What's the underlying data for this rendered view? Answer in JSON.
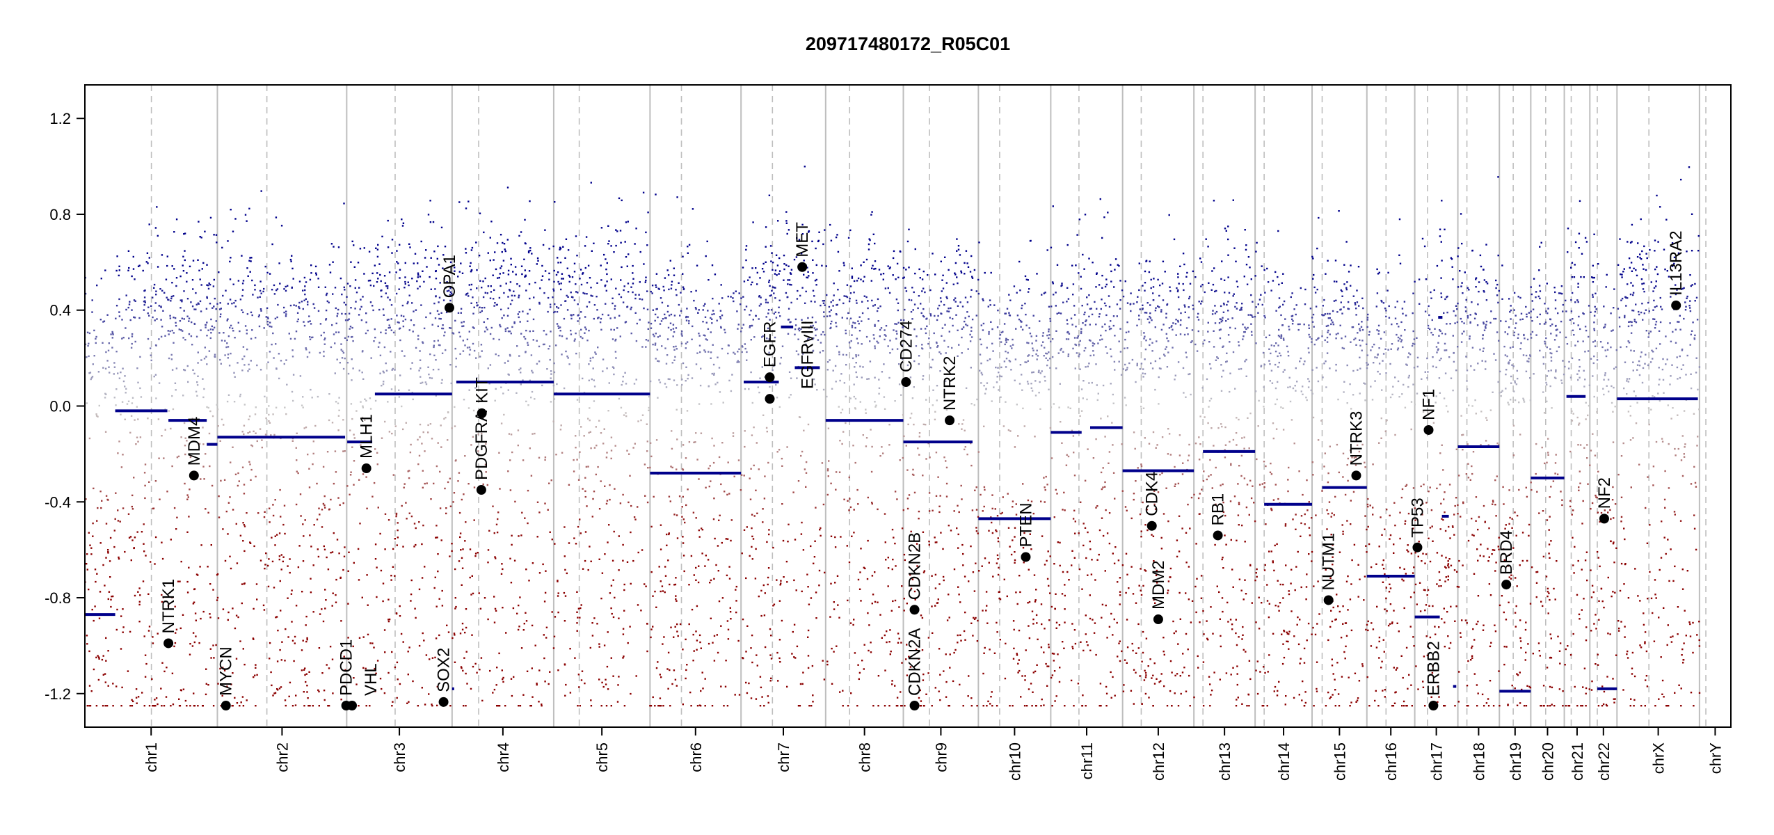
{
  "chart_data": {
    "type": "scatter",
    "title": "209717480172_R05C01",
    "xlabel": "",
    "ylabel": "",
    "ylim": [
      -1.34,
      1.34
    ],
    "y_ticks": [
      1.2,
      0.8,
      0.4,
      0.0,
      -0.4,
      -0.8,
      -1.2
    ],
    "y_tick_labels": [
      "1.2",
      "0.8",
      "0.4",
      "0.0",
      "-0.4",
      "-0.8",
      "-1.2"
    ],
    "grid": false,
    "colors": {
      "gain": "#00008b",
      "loss": "#8b0000",
      "neutral": "#c8c8c8",
      "segment": "#00008b",
      "gene_point": "#000000",
      "chromosome_border": "#bebebe",
      "centromere": "#bebebe"
    },
    "chromosomes": [
      {
        "name": "chr1",
        "length": 249,
        "centromere": 125
      },
      {
        "name": "chr2",
        "length": 243,
        "centromere": 93
      },
      {
        "name": "chr3",
        "length": 198,
        "centromere": 91
      },
      {
        "name": "chr4",
        "length": 191,
        "centromere": 50
      },
      {
        "name": "chr5",
        "length": 181,
        "centromere": 48
      },
      {
        "name": "chr6",
        "length": 171,
        "centromere": 59
      },
      {
        "name": "chr7",
        "length": 159,
        "centromere": 59
      },
      {
        "name": "chr8",
        "length": 146,
        "centromere": 45
      },
      {
        "name": "chr9",
        "length": 141,
        "centromere": 49
      },
      {
        "name": "chr10",
        "length": 136,
        "centromere": 40
      },
      {
        "name": "chr11",
        "length": 135,
        "centromere": 53
      },
      {
        "name": "chr12",
        "length": 134,
        "centromere": 35
      },
      {
        "name": "chr13",
        "length": 115,
        "centromere": 17
      },
      {
        "name": "chr14",
        "length": 107,
        "centromere": 17
      },
      {
        "name": "chr15",
        "length": 103,
        "centromere": 19
      },
      {
        "name": "chr16",
        "length": 90,
        "centromere": 36
      },
      {
        "name": "chr17",
        "length": 81,
        "centromere": 24
      },
      {
        "name": "chr18",
        "length": 78,
        "centromere": 17
      },
      {
        "name": "chr19",
        "length": 59,
        "centromere": 26
      },
      {
        "name": "chr20",
        "length": 63,
        "centromere": 28
      },
      {
        "name": "chr21",
        "length": 48,
        "centromere": 13
      },
      {
        "name": "chr22",
        "length": 51,
        "centromere": 14
      },
      {
        "name": "chrX",
        "length": 155,
        "centromere": 60
      },
      {
        "name": "chrY",
        "length": 59,
        "centromere": 12
      }
    ],
    "segments": [
      {
        "chr": "chr1",
        "start": 0,
        "end": 57,
        "value": -0.87
      },
      {
        "chr": "chr1",
        "start": 57,
        "end": 155,
        "value": -0.02
      },
      {
        "chr": "chr1",
        "start": 157,
        "end": 229,
        "value": -0.06
      },
      {
        "chr": "chr1",
        "start": 229,
        "end": 249,
        "value": -0.16
      },
      {
        "chr": "chr2",
        "start": 0,
        "end": 240,
        "value": -0.13
      },
      {
        "chr": "chr3",
        "start": 1,
        "end": 48,
        "value": -0.15
      },
      {
        "chr": "chr3",
        "start": 53,
        "end": 198,
        "value": 0.05
      },
      {
        "chr": "chr4",
        "start": 0,
        "end": 4,
        "value": -1.18
      },
      {
        "chr": "chr4",
        "start": 8,
        "end": 191,
        "value": 0.1
      },
      {
        "chr": "chr5",
        "start": 0,
        "end": 181,
        "value": 0.05
      },
      {
        "chr": "chr6",
        "start": 0,
        "end": 171,
        "value": -0.28
      },
      {
        "chr": "chr7",
        "start": 5,
        "end": 71,
        "value": 0.1
      },
      {
        "chr": "chr7",
        "start": 75,
        "end": 98,
        "value": 0.33
      },
      {
        "chr": "chr7",
        "start": 101,
        "end": 148,
        "value": 0.16
      },
      {
        "chr": "chr8",
        "start": 0,
        "end": 146,
        "value": -0.06
      },
      {
        "chr": "chr9",
        "start": 0,
        "end": 130,
        "value": -0.15
      },
      {
        "chr": "chr10",
        "start": 0,
        "end": 136,
        "value": -0.47
      },
      {
        "chr": "chr11",
        "start": 0,
        "end": 58,
        "value": -0.11
      },
      {
        "chr": "chr11",
        "start": 74,
        "end": 135,
        "value": -0.09
      },
      {
        "chr": "chr12",
        "start": 0,
        "end": 134,
        "value": -0.27
      },
      {
        "chr": "chr13",
        "start": 17,
        "end": 115,
        "value": -0.19
      },
      {
        "chr": "chr14",
        "start": 17,
        "end": 107,
        "value": -0.41
      },
      {
        "chr": "chr15",
        "start": 19,
        "end": 103,
        "value": -0.34
      },
      {
        "chr": "chr16",
        "start": 0,
        "end": 90,
        "value": -0.71
      },
      {
        "chr": "chr17",
        "start": 0,
        "end": 47,
        "value": -0.88
      },
      {
        "chr": "chr17",
        "start": 44,
        "end": 52,
        "value": 0.37
      },
      {
        "chr": "chr17",
        "start": 51,
        "end": 64,
        "value": -0.46
      },
      {
        "chr": "chr17",
        "start": 72,
        "end": 78,
        "value": -1.17
      },
      {
        "chr": "chr18",
        "start": 0,
        "end": 78,
        "value": -0.17
      },
      {
        "chr": "chr19",
        "start": 0,
        "end": 59,
        "value": -1.19
      },
      {
        "chr": "chr20",
        "start": 0,
        "end": 63,
        "value": -0.3
      },
      {
        "chr": "chr21",
        "start": 4,
        "end": 40,
        "value": 0.04
      },
      {
        "chr": "chr22",
        "start": 14,
        "end": 51,
        "value": -1.18
      },
      {
        "chrX": null,
        "chr": "chrX",
        "start": 0,
        "end": 152,
        "value": 0.03
      }
    ],
    "genes": [
      {
        "name": "NTRK1",
        "chr": "chr1",
        "pos": 157,
        "value": -0.99
      },
      {
        "name": "MDM4",
        "chr": "chr1",
        "pos": 205,
        "value": -0.29
      },
      {
        "name": "MYCN",
        "chr": "chr2",
        "pos": 16,
        "value": -1.25
      },
      {
        "name": "PDCD1",
        "chr": "chr2",
        "pos": 242,
        "value": -1.25
      },
      {
        "name": "VHL",
        "chr": "chr3",
        "pos": 10,
        "value": -1.25
      },
      {
        "name": "MLH1",
        "chr": "chr3",
        "pos": 37,
        "value": -0.26
      },
      {
        "name": "SOX2",
        "chr": "chr3",
        "pos": 182,
        "value": -1.235
      },
      {
        "name": "OPA1",
        "chr": "chr3",
        "pos": 193,
        "value": 0.41
      },
      {
        "name": "KIT",
        "chr": "chr4",
        "pos": 56,
        "value": -0.03
      },
      {
        "name": "PDGFRA",
        "chr": "chr4",
        "pos": 55,
        "value": -0.35
      },
      {
        "name": "EGFR",
        "chr": "chr7",
        "pos": 54,
        "value": 0.12
      },
      {
        "name": "EGFRvIII",
        "chr": "chr7",
        "pos": 54,
        "value": 0.03
      },
      {
        "name": "MET",
        "chr": "chr7",
        "pos": 115,
        "value": 0.58
      },
      {
        "name": "CD274",
        "chr": "chr9",
        "pos": 5,
        "value": 0.1
      },
      {
        "name": "CDKN2A",
        "chr": "chr9",
        "pos": 21,
        "value": -1.25
      },
      {
        "name": "CDKN2B",
        "chr": "chr9",
        "pos": 21,
        "value": -0.85
      },
      {
        "name": "NTRK2",
        "chr": "chr9",
        "pos": 87,
        "value": -0.06
      },
      {
        "name": "PTEN",
        "chr": "chr10",
        "pos": 89,
        "value": -0.63
      },
      {
        "name": "CDK4",
        "chr": "chr12",
        "pos": 55,
        "value": -0.5
      },
      {
        "name": "MDM2",
        "chr": "chr12",
        "pos": 67,
        "value": -0.89
      },
      {
        "name": "RB1",
        "chr": "chr13",
        "pos": 45,
        "value": -0.54
      },
      {
        "name": "NUTM1",
        "chr": "chr15",
        "pos": 31,
        "value": -0.81
      },
      {
        "name": "NTRK3",
        "chr": "chr15",
        "pos": 83,
        "value": -0.29
      },
      {
        "name": "TP53",
        "chr": "chr17",
        "pos": 5,
        "value": -0.59
      },
      {
        "name": "NF1",
        "chr": "chr17",
        "pos": 26,
        "value": -0.1
      },
      {
        "name": "ERBB2",
        "chr": "chr17",
        "pos": 35,
        "value": -1.25
      },
      {
        "name": "BRD4",
        "chr": "chr19",
        "pos": 13,
        "value": -0.745
      },
      {
        "name": "NF2",
        "chr": "chr22",
        "pos": 27,
        "value": -0.47
      },
      {
        "name": "IL13RA2",
        "chr": "chrX",
        "pos": 111,
        "value": 0.42
      }
    ]
  }
}
